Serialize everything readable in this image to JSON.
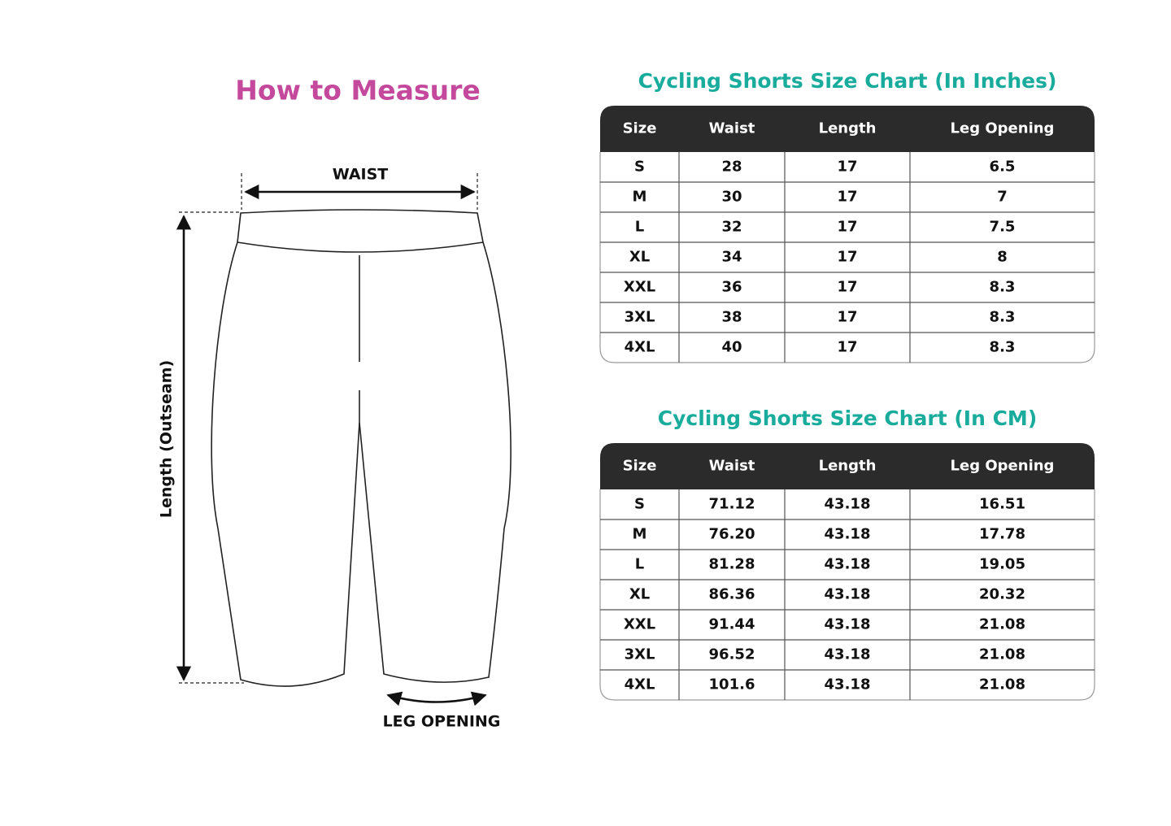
{
  "measure": {
    "title": "How to Measure",
    "waist_label": "WAIST",
    "length_label": "Length (Outseam)",
    "leg_opening_label": "LEG OPENING"
  },
  "tables": [
    {
      "title": "Cycling Shorts Size Chart (In Inches)",
      "header": [
        "Size",
        "Waist",
        "Length",
        "Leg Opening"
      ],
      "rows": [
        [
          "S",
          "28",
          "17",
          "6.5"
        ],
        [
          "M",
          "30",
          "17",
          "7"
        ],
        [
          "L",
          "32",
          "17",
          "7.5"
        ],
        [
          "XL",
          "34",
          "17",
          "8"
        ],
        [
          "XXL",
          "36",
          "17",
          "8.3"
        ],
        [
          "3XL",
          "38",
          "17",
          "8.3"
        ],
        [
          "4XL",
          "40",
          "17",
          "8.3"
        ]
      ]
    },
    {
      "title": "Cycling Shorts Size Chart (In CM)",
      "header": [
        "Size",
        "Waist",
        "Length",
        "Leg Opening"
      ],
      "rows": [
        [
          "S",
          "71.12",
          "43.18",
          "16.51"
        ],
        [
          "M",
          "76.20",
          "43.18",
          "17.78"
        ],
        [
          "L",
          "81.28",
          "43.18",
          "19.05"
        ],
        [
          "XL",
          "86.36",
          "43.18",
          "20.32"
        ],
        [
          "XXL",
          "91.44",
          "43.18",
          "21.08"
        ],
        [
          "3XL",
          "96.52",
          "43.18",
          "21.08"
        ],
        [
          "4XL",
          "101.6",
          "43.18",
          "21.08"
        ]
      ]
    }
  ]
}
